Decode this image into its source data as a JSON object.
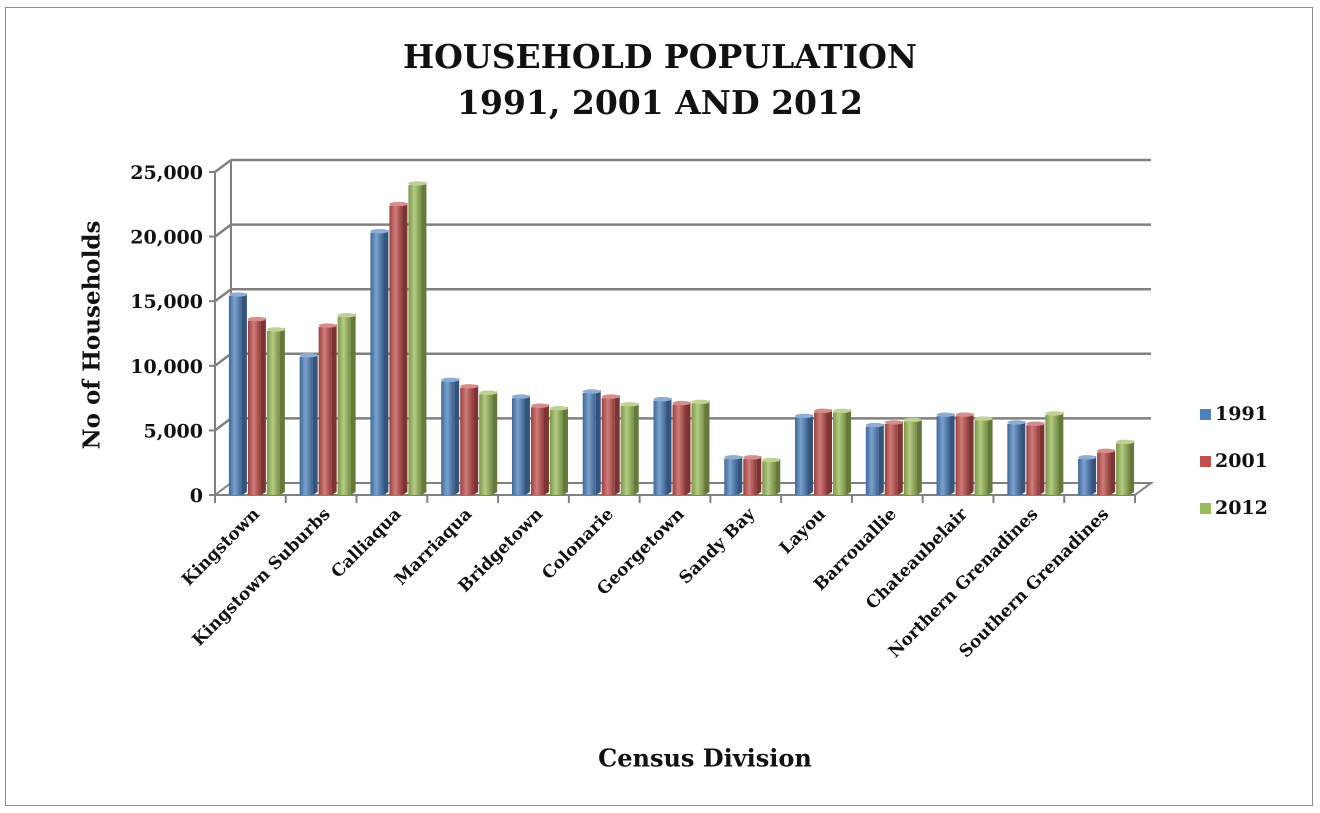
{
  "chart_data": {
    "type": "bar",
    "title": [
      "HOUSEHOLD POPULATION",
      "1991, 2001 AND 2012"
    ],
    "xlabel": "Census Division",
    "ylabel": "No of Households",
    "ylim": [
      0,
      25000
    ],
    "yticks": [
      0,
      5000,
      10000,
      15000,
      20000,
      25000
    ],
    "ytick_labels": [
      "0",
      "5,000",
      "10,000",
      "15,000",
      "20,000",
      "25,000"
    ],
    "grid": true,
    "legend_position": "right",
    "categories": [
      "Kingstown",
      "Kingstown Suburbs",
      "Calliaqua",
      "Marriaqua",
      "Bridgetown",
      "Colonarie",
      "Georgetown",
      "Sandy Bay",
      "Layou",
      "Barrouallie",
      "Chateaubelair",
      "Northern Grenadines",
      "Southern Grenadines"
    ],
    "series": [
      {
        "name": "1991",
        "color": "#4f81bd",
        "values": [
          15400,
          10700,
          20300,
          8800,
          7500,
          7900,
          7300,
          2800,
          6000,
          5300,
          6100,
          5500,
          2800
        ]
      },
      {
        "name": "2001",
        "color": "#c0504d",
        "values": [
          13500,
          13000,
          22400,
          8300,
          6800,
          7500,
          7000,
          2800,
          6400,
          5500,
          6100,
          5400,
          3300
        ]
      },
      {
        "name": "2012",
        "color": "#9bbb59",
        "values": [
          12700,
          13800,
          24000,
          7800,
          6600,
          6900,
          7100,
          2600,
          6400,
          5700,
          5800,
          6200,
          4000
        ]
      }
    ]
  }
}
